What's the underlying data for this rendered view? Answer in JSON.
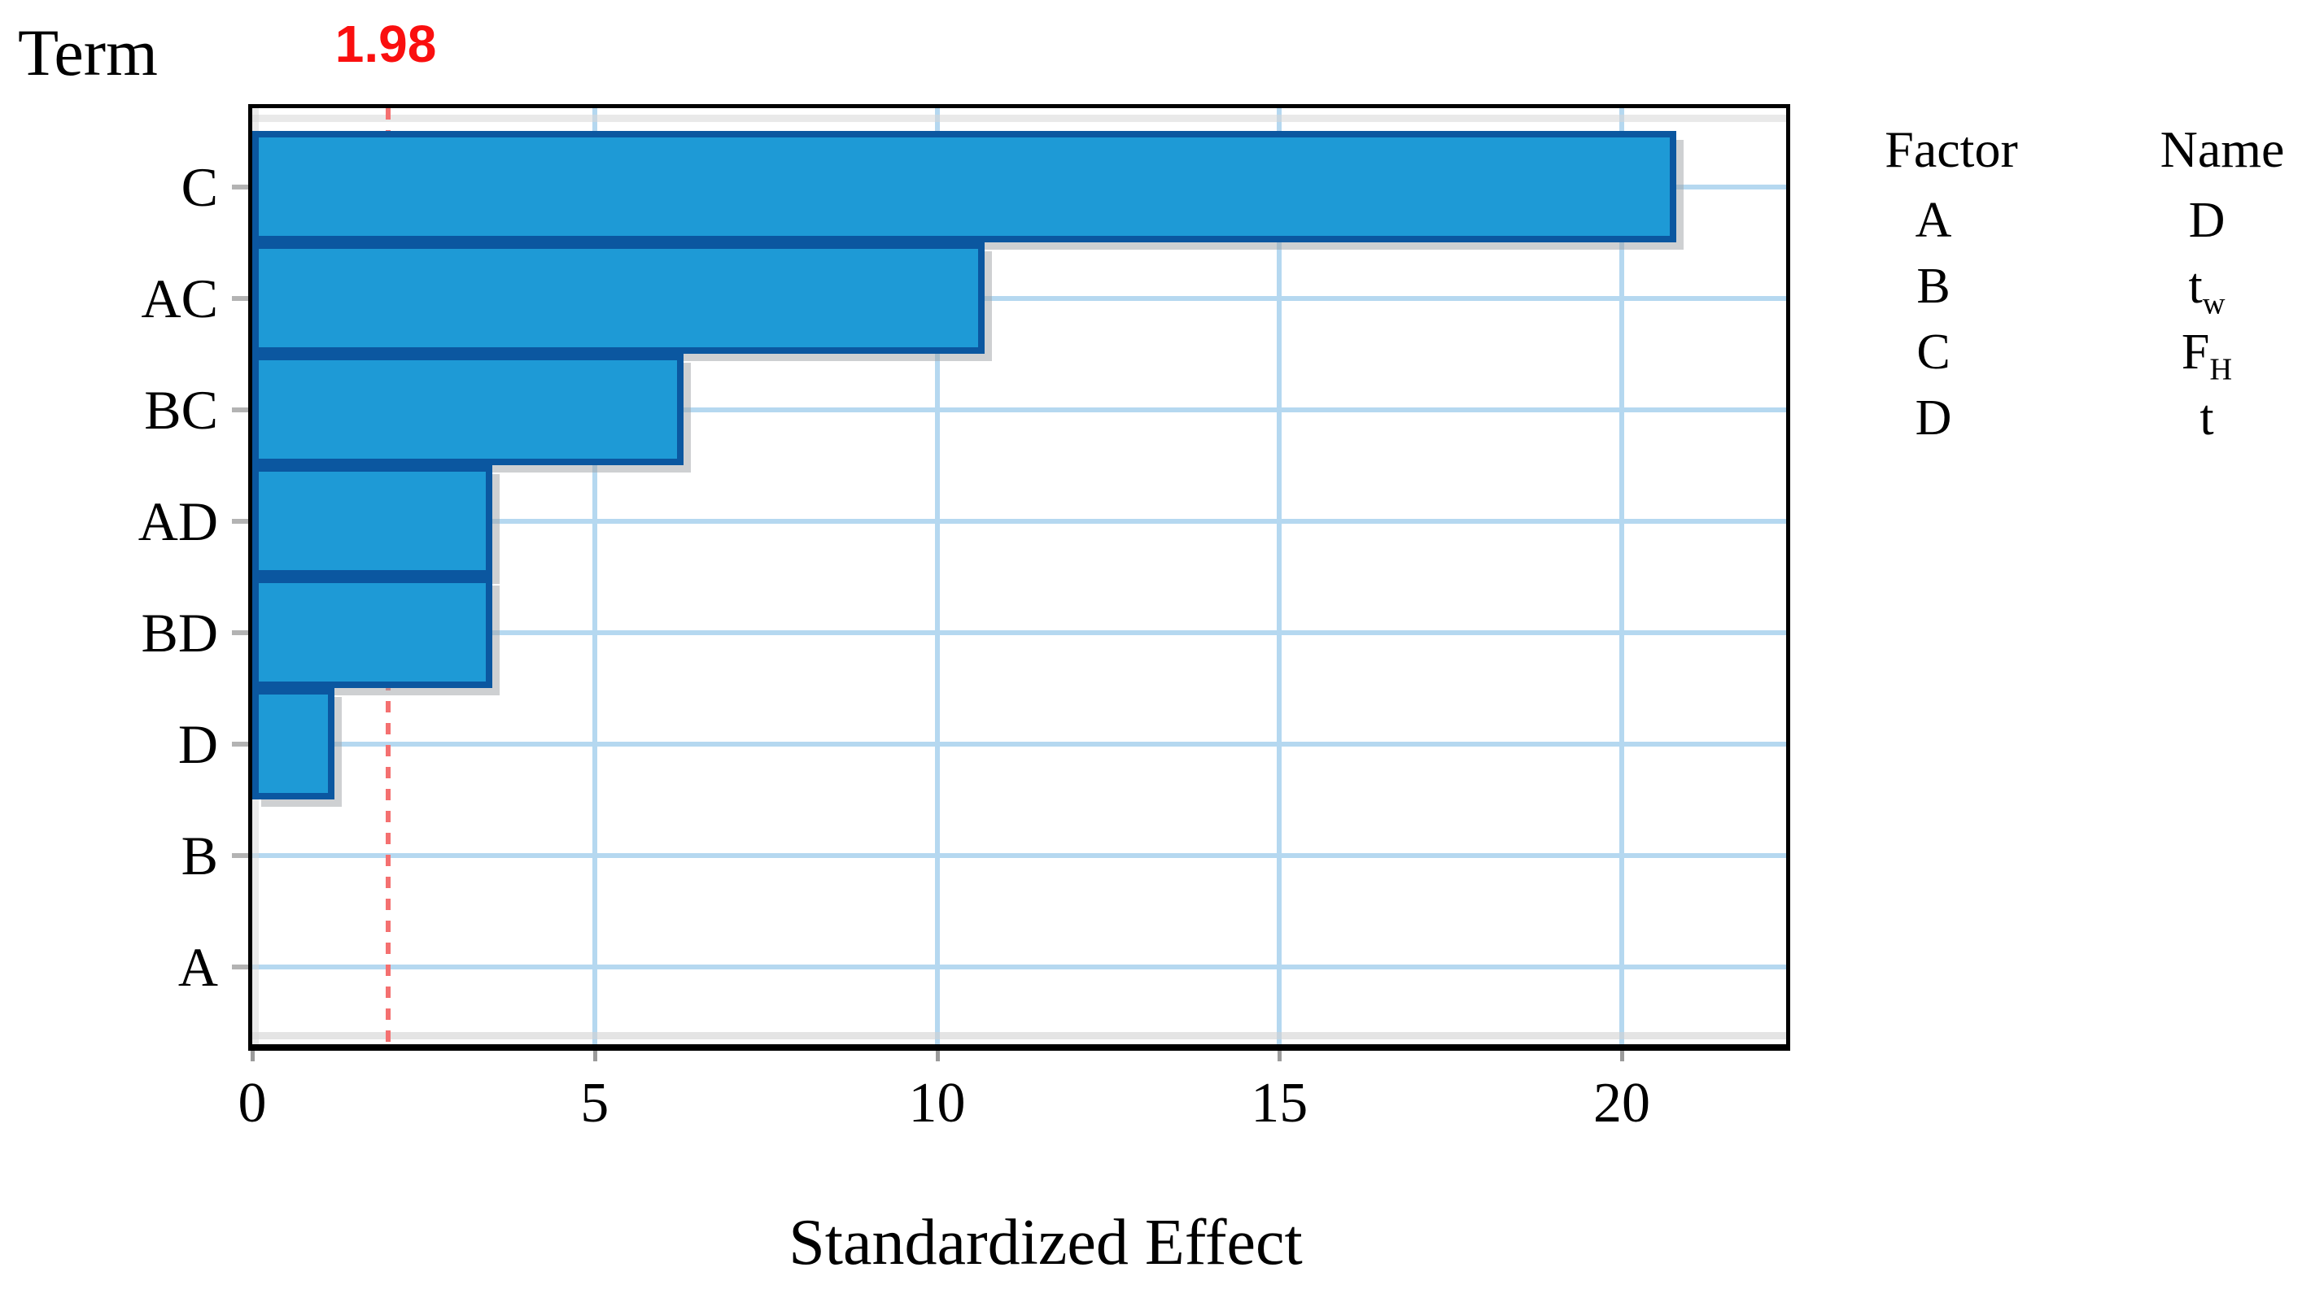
{
  "chart_data": {
    "type": "bar",
    "orientation": "horizontal",
    "title": "",
    "ylabel": "Term",
    "xlabel": "Standardized Effect",
    "categories": [
      "C",
      "AC",
      "BC",
      "AD",
      "BD",
      "D",
      "B",
      "A"
    ],
    "values": [
      20.8,
      10.7,
      6.3,
      3.5,
      3.5,
      1.2,
      0,
      0
    ],
    "x_ticks": [
      0,
      5,
      10,
      15,
      20
    ],
    "xlim": [
      0,
      22.4
    ],
    "grid": true,
    "reference_line": {
      "value": 1.98,
      "label": "1.98"
    },
    "legend": {
      "position": "right",
      "headers": [
        "Factor",
        "Name"
      ],
      "rows": [
        {
          "factor": "A",
          "name_base": "D",
          "name_sub": ""
        },
        {
          "factor": "B",
          "name_base": "t",
          "name_sub": "w"
        },
        {
          "factor": "C",
          "name_base": "F",
          "name_sub": "H"
        },
        {
          "factor": "D",
          "name_base": "t",
          "name_sub": ""
        }
      ]
    }
  },
  "colors": {
    "bar_fill": "#1e9ad6",
    "bar_border": "#0b57a0",
    "gridline": "#b5d8f0",
    "reference_line": "#f47070",
    "reference_label": "#fa0f0f",
    "axis_frame": "#000000",
    "text": "#000000"
  }
}
